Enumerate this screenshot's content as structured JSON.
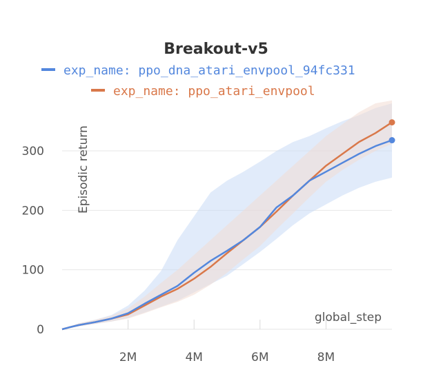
{
  "chart_data": {
    "type": "line",
    "title": "Breakout-v5",
    "xlabel": "global_step",
    "ylabel": "Episodic return",
    "xlim": [
      0,
      10000000
    ],
    "ylim": [
      0,
      380
    ],
    "x_ticks": [
      {
        "value": 2000000,
        "label": "2M"
      },
      {
        "value": 4000000,
        "label": "4M"
      },
      {
        "value": 6000000,
        "label": "6M"
      },
      {
        "value": 8000000,
        "label": "8M"
      }
    ],
    "y_ticks": [
      {
        "value": 0,
        "label": "0"
      },
      {
        "value": 100,
        "label": "100"
      },
      {
        "value": 200,
        "label": "200"
      },
      {
        "value": 300,
        "label": "300"
      }
    ],
    "grid": true,
    "legend": "top",
    "series": [
      {
        "name": "exp_name: ppo_dna_atari_envpool_94fc331",
        "color": "#5387dd",
        "band_color": "#c9daf5",
        "x": [
          0,
          200000,
          500000,
          1000000,
          1500000,
          2000000,
          2500000,
          3000000,
          3500000,
          4000000,
          4500000,
          5000000,
          5500000,
          6000000,
          6500000,
          7000000,
          7500000,
          8000000,
          8500000,
          9000000,
          9500000,
          10000000
        ],
        "y": [
          0,
          3,
          7,
          12,
          18,
          27,
          43,
          58,
          73,
          95,
          115,
          132,
          150,
          172,
          205,
          225,
          250,
          265,
          280,
          295,
          308,
          318
        ],
        "band_low": [
          0,
          2,
          5,
          9,
          13,
          19,
          28,
          38,
          48,
          62,
          76,
          90,
          110,
          130,
          152,
          175,
          195,
          210,
          225,
          238,
          248,
          255
        ],
        "band_high": [
          0,
          4,
          10,
          16,
          24,
          40,
          65,
          98,
          150,
          190,
          230,
          250,
          265,
          282,
          300,
          315,
          325,
          338,
          350,
          360,
          372,
          380
        ]
      },
      {
        "name": "exp_name: ppo_atari_envpool",
        "color": "#d9784a",
        "band_color": "#f2dcd4",
        "x": [
          0,
          200000,
          500000,
          1000000,
          1500000,
          2000000,
          2500000,
          3000000,
          3500000,
          4000000,
          4500000,
          5000000,
          5500000,
          6000000,
          6500000,
          7000000,
          7500000,
          8000000,
          8500000,
          9000000,
          9500000,
          10000000
        ],
        "y": [
          0,
          3,
          7,
          12,
          18,
          25,
          40,
          55,
          68,
          85,
          105,
          128,
          150,
          172,
          198,
          225,
          250,
          275,
          295,
          315,
          330,
          348
        ],
        "band_low": [
          0,
          2,
          5,
          9,
          13,
          18,
          27,
          37,
          46,
          58,
          75,
          95,
          118,
          140,
          168,
          195,
          222,
          248,
          268,
          285,
          300,
          312
        ],
        "band_high": [
          0,
          4,
          10,
          16,
          23,
          35,
          55,
          78,
          100,
          125,
          150,
          175,
          200,
          225,
          250,
          275,
          300,
          325,
          345,
          365,
          380,
          385
        ]
      }
    ]
  }
}
